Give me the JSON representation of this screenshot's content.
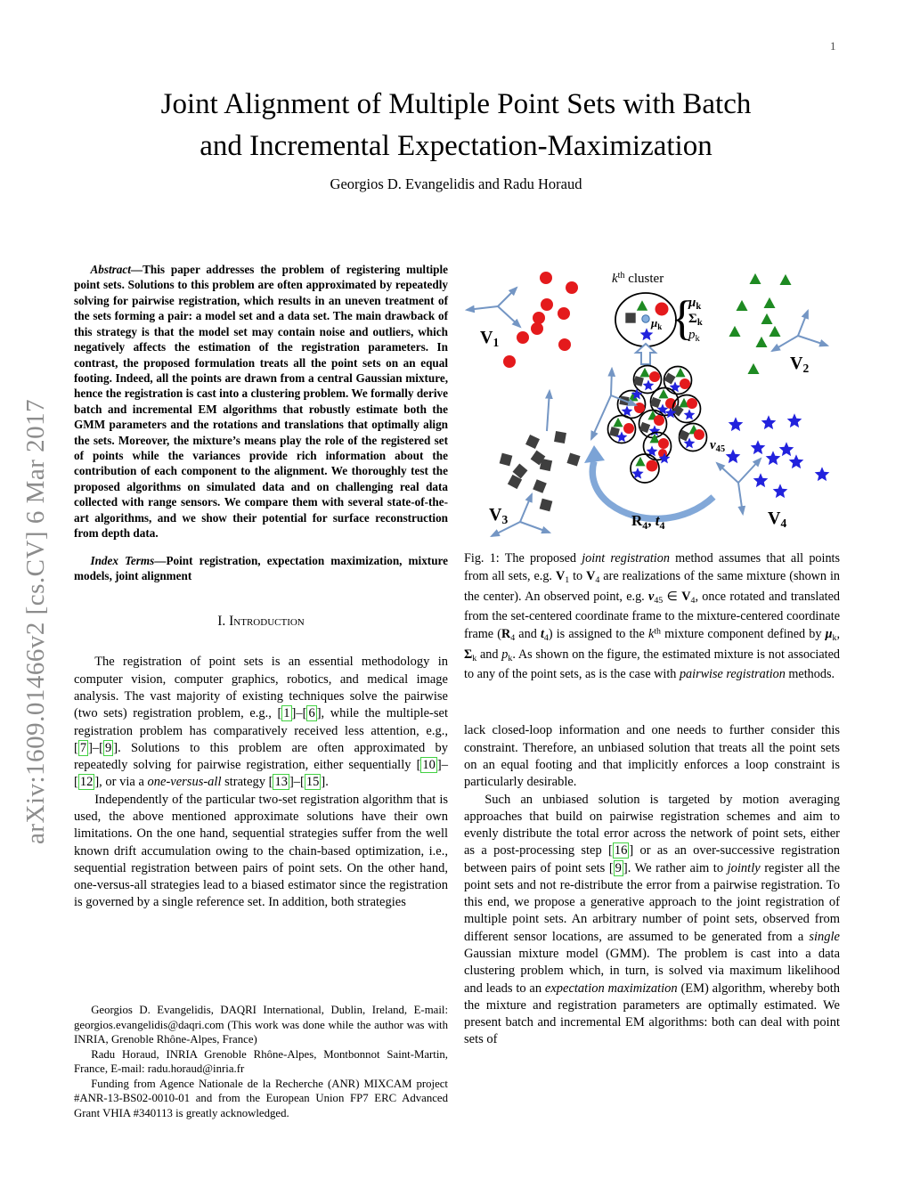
{
  "page": {
    "number": "1"
  },
  "sidebar": {
    "arxiv_label": "arXiv:1609.01466v2  [cs.CV]  6 Mar 2017"
  },
  "header": {
    "title_line1": "Joint Alignment of Multiple Point Sets with Batch",
    "title_line2": "and Incremental Expectation-Maximization",
    "authors": "Georgios D. Evangelidis and Radu Horaud"
  },
  "abstract": {
    "segments": [
      {
        "t": "Abstract",
        "s": "bi"
      },
      {
        "t": "—This paper addresses the problem of registering multiple point sets. Solutions to this problem are often approximated by repeatedly solving for pairwise registration, which results in an uneven treatment of the sets forming a pair: a model set and a data set. The main drawback of this strategy is that the model set may contain noise and outliers, which negatively affects the estimation of the registration parameters. In contrast, the proposed formulation treats all the point sets on an equal footing. Indeed, all the points are drawn from a central Gaussian mixture, hence the registration is cast into a clustering problem. We formally derive batch and incremental EM algorithms that robustly estimate both the GMM parameters and the rotations and translations that optimally align the sets. Moreover, the mixture’s means play the role of the registered set of points while the variances provide rich information about the contribution of each component to the alignment. We thoroughly test the proposed algorithms on simulated data and on challenging real data collected with range sensors. We compare them with several state-of-the-art algorithms, and we show their potential for surface reconstruction from depth data."
      }
    ]
  },
  "index_terms": {
    "segments": [
      {
        "t": "Index Terms",
        "s": "bi"
      },
      {
        "t": "—Point registration, expectation maximization, mixture models, joint alignment"
      }
    ]
  },
  "introduction": {
    "heading": "I. Introduction",
    "para1_segments": [
      {
        "t": "The registration of point sets is an essential methodology in computer vision, computer graphics, robotics, and medical image analysis. The vast majority of existing techniques solve the pairwise (two sets) registration problem, e.g., ["
      },
      {
        "t": "1",
        "s": "c"
      },
      {
        "t": "]–["
      },
      {
        "t": "6",
        "s": "c"
      },
      {
        "t": "], while the multiple-set registration problem has comparatively received less attention, e.g., ["
      },
      {
        "t": "7",
        "s": "c"
      },
      {
        "t": "]–["
      },
      {
        "t": "9",
        "s": "c"
      },
      {
        "t": "]. Solutions to this problem are often approximated by repeatedly solving for pairwise registration, either sequentially ["
      },
      {
        "t": "10",
        "s": "c"
      },
      {
        "t": "]–["
      },
      {
        "t": "12",
        "s": "c"
      },
      {
        "t": "], or via a "
      },
      {
        "t": "one-versus-all",
        "s": "i"
      },
      {
        "t": " strategy ["
      },
      {
        "t": "13",
        "s": "c"
      },
      {
        "t": "]–["
      },
      {
        "t": "15",
        "s": "c"
      },
      {
        "t": "]."
      }
    ],
    "para2": "Independently of the particular two-set registration algorithm that is used, the above mentioned approximate solutions have their own limitations. On the one hand, sequential strategies suffer from the well known drift accumulation owing to the chain-based optimization, i.e., sequential registration between pairs of point sets. On the other hand, one-versus-all strategies lead to a biased estimator since the registration is governed by a single reference set. In addition, both strategies"
  },
  "footnote": {
    "para1": "Georgios D. Evangelidis, DAQRI International, Dublin, Ireland, E-mail: georgios.evangelidis@daqri.com (This work was done while the author was with INRIA, Grenoble Rhône-Alpes, France)",
    "para2": "Radu Horaud, INRIA Grenoble Rhône-Alpes, Montbonnot Saint-Martin, France, E-mail: radu.horaud@inria.fr",
    "para3": "Funding from Agence Nationale de la Recherche (ANR) MIXCAM project #ANR-13-BS02-0010-01 and from the European Union FP7 ERC Advanced Grant VHIA #340113 is greatly acknowledged."
  },
  "figure": {
    "cluster_label": {
      "k": "k",
      "th": "th",
      "rest": " cluster"
    },
    "center_mu": {
      "sym": "μ",
      "sub": "k"
    },
    "brace": "{",
    "params": {
      "mu": {
        "sym": "μ",
        "sub": "k"
      },
      "sigma": {
        "sym": "Σ",
        "sub": "k"
      },
      "p": {
        "sym": "p",
        "sub": "k"
      }
    },
    "sets": {
      "v1": {
        "main": "V",
        "sub": "1"
      },
      "v2": {
        "main": "V",
        "sub": "2"
      },
      "v3": {
        "main": "V",
        "sub": "3"
      },
      "v4": {
        "main": "V",
        "sub": "4"
      }
    },
    "v45": {
      "main": "v",
      "sub": "45"
    },
    "transform_label": {
      "r": "R",
      "r_sub": "4",
      "sep": ", ",
      "t": "t",
      "t_sub": "4"
    },
    "colors": {
      "red_points": "#e41a1c",
      "green_points": "#1e8a22",
      "blue_points": "#2222dd",
      "dark_points": "#3f3f3f",
      "frame_arrows": "#7496c4",
      "swoosh": "#7ba3d6",
      "citation_box": "#42d142"
    }
  },
  "caption": {
    "segments": [
      {
        "t": "Fig. 1: The proposed "
      },
      {
        "t": "joint registration",
        "s": "i"
      },
      {
        "t": " method assumes that all points from all sets, e.g. "
      },
      {
        "t": "V",
        "s": "b"
      },
      {
        "t": "1",
        "s": "sub"
      },
      {
        "t": " to "
      },
      {
        "t": "V",
        "s": "b"
      },
      {
        "t": "4",
        "s": "sub"
      },
      {
        "t": " are realizations of the same mixture (shown in the center). An observed point, e.g. "
      },
      {
        "t": "v",
        "s": "bi"
      },
      {
        "t": "45",
        "s": "sub"
      },
      {
        "t": " ∈ "
      },
      {
        "t": "V",
        "s": "b"
      },
      {
        "t": "4",
        "s": "sub"
      },
      {
        "t": ", once rotated and translated from the set-centered coordinate frame to the mixture-centered coordinate frame ("
      },
      {
        "t": "R",
        "s": "b"
      },
      {
        "t": "4",
        "s": "sub"
      },
      {
        "t": " and "
      },
      {
        "t": "t",
        "s": "bi"
      },
      {
        "t": "4",
        "s": "sub"
      },
      {
        "t": ") is assigned to the "
      },
      {
        "t": "k",
        "s": "i"
      },
      {
        "t": "th",
        "s": "sup"
      },
      {
        "t": " mixture component defined by "
      },
      {
        "t": "μ",
        "s": "bi"
      },
      {
        "t": "k",
        "s": "sub"
      },
      {
        "t": ", "
      },
      {
        "t": "Σ",
        "s": "b"
      },
      {
        "t": "k",
        "s": "sub"
      },
      {
        "t": " and "
      },
      {
        "t": "p",
        "s": "i"
      },
      {
        "t": "k",
        "s": "sub"
      },
      {
        "t": ". As shown on the figure, the estimated mixture is not associated to any of the point sets, as is the case with "
      },
      {
        "t": "pairwise registration",
        "s": "i"
      },
      {
        "t": " methods."
      }
    ]
  },
  "right_column": {
    "para1": "lack closed-loop information and one needs to further consider this constraint. Therefore, an unbiased solution that treats all the point sets on an equal footing and that implicitly enforces a loop constraint is particularly desirable.",
    "para2_segments": [
      {
        "t": "Such an unbiased solution is targeted by motion averaging approaches that build on pairwise registration schemes and aim to evenly distribute the total error across the network of point sets, either as a post-processing step ["
      },
      {
        "t": "16",
        "s": "c"
      },
      {
        "t": "] or as an over-successive registration between pairs of point sets ["
      },
      {
        "t": "9",
        "s": "c"
      },
      {
        "t": "]. We rather aim to "
      },
      {
        "t": "jointly",
        "s": "i"
      },
      {
        "t": " register all the point sets and not re-distribute the error from a pairwise registration. To this end, we propose a generative approach to the joint registration of multiple point sets. An arbitrary number of point sets, observed from different sensor locations, are assumed to be generated from a "
      },
      {
        "t": "single",
        "s": "i"
      },
      {
        "t": " Gaussian mixture model (GMM). The problem is cast into a data clustering problem which, in turn, is solved via maximum likelihood and leads to an "
      },
      {
        "t": "expectation maximization",
        "s": "i"
      },
      {
        "t": " (EM) algorithm, whereby both the mixture and registration parameters are optimally estimated. We present batch and incremental EM algorithms: both can deal with point sets of"
      }
    ]
  }
}
